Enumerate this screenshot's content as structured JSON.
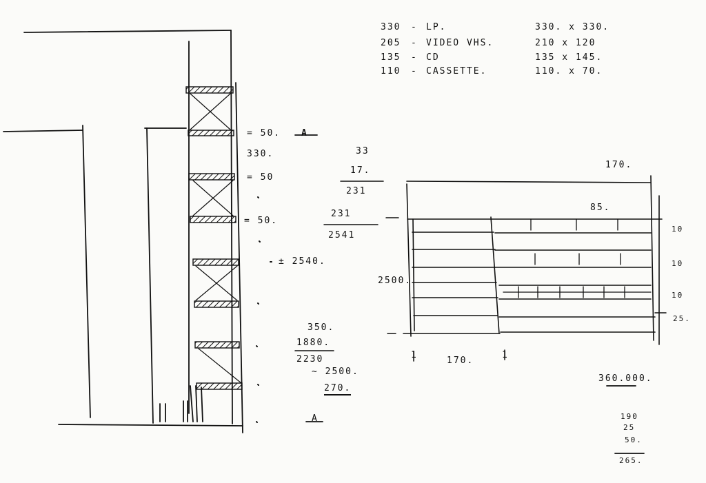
{
  "legend": {
    "rows": [
      {
        "code": "330",
        "dash": "-",
        "item": "LP.",
        "size": "330. x 330."
      },
      {
        "code": "205",
        "dash": "-",
        "item": "VIDEO VHS.",
        "size": "210 x 120"
      },
      {
        "code": "135",
        "dash": "-",
        "item": "CD",
        "size": "135 x 145."
      },
      {
        "code": "110",
        "dash": "-",
        "item": "CASSETTE.",
        "size": "110. x 70."
      }
    ]
  },
  "section": {
    "gap_top": "= 50.",
    "gap_mid1": "= 50",
    "gap_mid2": "= 50.",
    "span": "330.",
    "mark_top": "A",
    "height_note": "± 2540.",
    "mark_bottom": "A"
  },
  "calc1": {
    "a": "33",
    "b": "17.",
    "sum": "231",
    "c": "231",
    "total": "2541"
  },
  "calc2": {
    "a": "350.",
    "b": "1880.",
    "sum": "2230",
    "approx": "~ 2500.",
    "result": "270."
  },
  "elevation": {
    "top_width": "170.",
    "inner_width": "85.",
    "height": "2500.",
    "bottom_label": "170.",
    "bottom_ticks": [
      "1",
      "1"
    ],
    "right_dims": [
      "10",
      "10",
      "10",
      "25."
    ]
  },
  "totals": {
    "price": "360.000.",
    "list": [
      "190",
      "25",
      "50.",
      "265."
    ]
  }
}
